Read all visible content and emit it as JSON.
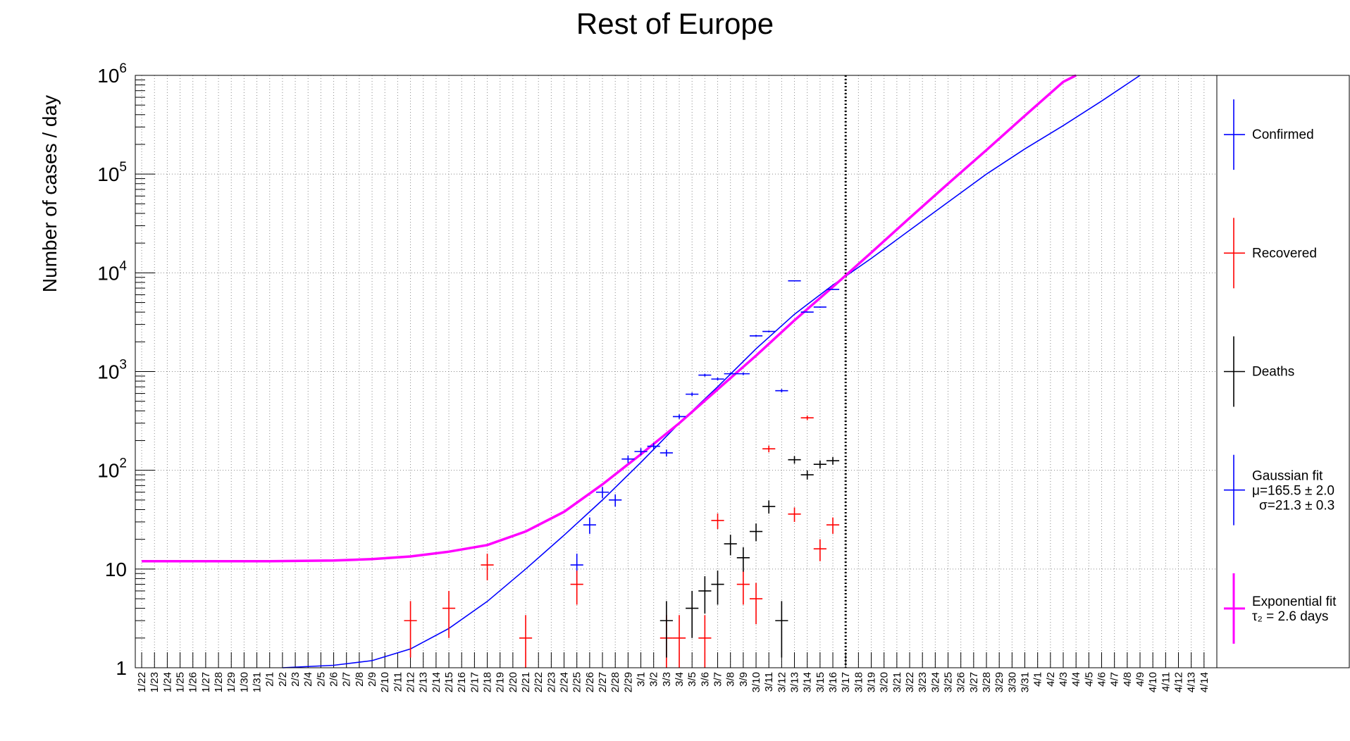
{
  "chart_data": {
    "type": "scatter",
    "title": "Rest of Europe",
    "ylabel": "Number of cases / day",
    "xlabel": "",
    "yscale": "log",
    "ylim": [
      1,
      1000000
    ],
    "y_tick_labels": [
      "1",
      "10",
      "10^2",
      "10^3",
      "10^4",
      "10^5",
      "10^6"
    ],
    "grid": true,
    "legend_position": "right",
    "categories": [
      "1/22",
      "1/23",
      "1/24",
      "1/25",
      "1/26",
      "1/27",
      "1/28",
      "1/29",
      "1/30",
      "1/31",
      "2/1",
      "2/2",
      "2/3",
      "2/4",
      "2/5",
      "2/6",
      "2/7",
      "2/8",
      "2/9",
      "2/10",
      "2/11",
      "2/12",
      "2/13",
      "2/14",
      "2/15",
      "2/16",
      "2/17",
      "2/18",
      "2/19",
      "2/20",
      "2/21",
      "2/22",
      "2/23",
      "2/24",
      "2/25",
      "2/26",
      "2/27",
      "2/28",
      "2/29",
      "3/1",
      "3/2",
      "3/3",
      "3/4",
      "3/5",
      "3/6",
      "3/7",
      "3/8",
      "3/9",
      "3/10",
      "3/11",
      "3/12",
      "3/13",
      "3/14",
      "3/15",
      "3/16",
      "3/17",
      "3/18",
      "3/19",
      "3/20",
      "3/21",
      "3/22",
      "3/23",
      "3/24",
      "3/25",
      "3/26",
      "3/27",
      "3/28",
      "3/29",
      "3/30",
      "3/31",
      "4/1",
      "4/2",
      "4/3",
      "4/4",
      "4/5",
      "4/6",
      "4/7",
      "4/8",
      "4/9",
      "4/10",
      "4/11",
      "4/12",
      "4/13",
      "4/14"
    ],
    "vertical_marker": "3/17",
    "series": [
      {
        "name": "Confirmed",
        "color": "#0000ff",
        "kind": "points",
        "points": [
          {
            "x": "2/25",
            "y": 11
          },
          {
            "x": "2/26",
            "y": 28
          },
          {
            "x": "2/27",
            "y": 60
          },
          {
            "x": "2/28",
            "y": 50
          },
          {
            "x": "2/29",
            "y": 130
          },
          {
            "x": "3/1",
            "y": 155
          },
          {
            "x": "3/2",
            "y": 175
          },
          {
            "x": "3/3",
            "y": 150
          },
          {
            "x": "3/4",
            "y": 350
          },
          {
            "x": "3/5",
            "y": 590
          },
          {
            "x": "3/6",
            "y": 920
          },
          {
            "x": "3/7",
            "y": 840
          },
          {
            "x": "3/8",
            "y": 950
          },
          {
            "x": "3/9",
            "y": 950
          },
          {
            "x": "3/10",
            "y": 2300
          },
          {
            "x": "3/11",
            "y": 2550
          },
          {
            "x": "3/12",
            "y": 640
          },
          {
            "x": "3/13",
            "y": 8300
          },
          {
            "x": "3/14",
            "y": 4000
          },
          {
            "x": "3/15",
            "y": 4500
          },
          {
            "x": "3/16",
            "y": 6800
          }
        ]
      },
      {
        "name": "Recovered",
        "color": "#ff0000",
        "kind": "points",
        "points": [
          {
            "x": "2/12",
            "y": 3
          },
          {
            "x": "2/15",
            "y": 4
          },
          {
            "x": "2/18",
            "y": 11
          },
          {
            "x": "2/21",
            "y": 2
          },
          {
            "x": "2/25",
            "y": 7
          },
          {
            "x": "3/3",
            "y": 2
          },
          {
            "x": "3/4",
            "y": 2
          },
          {
            "x": "3/6",
            "y": 2
          },
          {
            "x": "3/7",
            "y": 31
          },
          {
            "x": "3/9",
            "y": 7
          },
          {
            "x": "3/10",
            "y": 5
          },
          {
            "x": "3/11",
            "y": 165
          },
          {
            "x": "3/13",
            "y": 36
          },
          {
            "x": "3/14",
            "y": 340
          },
          {
            "x": "3/15",
            "y": 16
          },
          {
            "x": "3/16",
            "y": 28
          }
        ]
      },
      {
        "name": "Deaths",
        "color": "#000000",
        "kind": "points",
        "points": [
          {
            "x": "3/3",
            "y": 3
          },
          {
            "x": "3/5",
            "y": 4
          },
          {
            "x": "3/6",
            "y": 6
          },
          {
            "x": "3/7",
            "y": 7
          },
          {
            "x": "3/8",
            "y": 18
          },
          {
            "x": "3/9",
            "y": 13
          },
          {
            "x": "3/10",
            "y": 24
          },
          {
            "x": "3/11",
            "y": 43
          },
          {
            "x": "3/12",
            "y": 3
          },
          {
            "x": "3/13",
            "y": 128
          },
          {
            "x": "3/14",
            "y": 90
          },
          {
            "x": "3/15",
            "y": 115
          },
          {
            "x": "3/16",
            "y": 125
          }
        ]
      },
      {
        "name": "Gaussian fit",
        "label_lines": [
          "Gaussian fit",
          "μ=165.5 ± 2.0",
          "σ=21.3 ± 0.3"
        ],
        "color": "#0000ff",
        "kind": "curve",
        "points": [
          {
            "x": "2/2",
            "y": 1.0
          },
          {
            "x": "2/6",
            "y": 1.06
          },
          {
            "x": "2/9",
            "y": 1.18
          },
          {
            "x": "2/12",
            "y": 1.55
          },
          {
            "x": "2/15",
            "y": 2.5
          },
          {
            "x": "2/18",
            "y": 4.7
          },
          {
            "x": "2/21",
            "y": 10
          },
          {
            "x": "2/24",
            "y": 22
          },
          {
            "x": "2/27",
            "y": 50
          },
          {
            "x": "3/1",
            "y": 120
          },
          {
            "x": "3/4",
            "y": 300
          },
          {
            "x": "3/7",
            "y": 700
          },
          {
            "x": "3/10",
            "y": 1700
          },
          {
            "x": "3/13",
            "y": 3800
          },
          {
            "x": "3/16",
            "y": 7500
          },
          {
            "x": "3/19",
            "y": 14000
          },
          {
            "x": "3/22",
            "y": 27000
          },
          {
            "x": "3/25",
            "y": 52000
          },
          {
            "x": "3/28",
            "y": 100000
          },
          {
            "x": "3/31",
            "y": 180000
          },
          {
            "x": "4/3",
            "y": 310000
          },
          {
            "x": "4/6",
            "y": 550000
          },
          {
            "x": "4/9",
            "y": 1000000
          }
        ]
      },
      {
        "name": "Exponential fit",
        "label_lines": [
          "Exponential fit",
          "τ₂ = 2.6 days"
        ],
        "color": "#ff00ff",
        "kind": "curve",
        "points": [
          {
            "x": "1/22",
            "y": 12
          },
          {
            "x": "2/1",
            "y": 12
          },
          {
            "x": "2/6",
            "y": 12.2
          },
          {
            "x": "2/9",
            "y": 12.6
          },
          {
            "x": "2/12",
            "y": 13.4
          },
          {
            "x": "2/15",
            "y": 15
          },
          {
            "x": "2/18",
            "y": 17.5
          },
          {
            "x": "2/21",
            "y": 24
          },
          {
            "x": "2/24",
            "y": 38
          },
          {
            "x": "2/27",
            "y": 72
          },
          {
            "x": "3/1",
            "y": 145
          },
          {
            "x": "3/4",
            "y": 300
          },
          {
            "x": "3/7",
            "y": 660
          },
          {
            "x": "3/10",
            "y": 1450
          },
          {
            "x": "3/13",
            "y": 3300
          },
          {
            "x": "3/16",
            "y": 7200
          },
          {
            "x": "3/19",
            "y": 16000
          },
          {
            "x": "3/22",
            "y": 36000
          },
          {
            "x": "3/25",
            "y": 80000
          },
          {
            "x": "3/28",
            "y": 175000
          },
          {
            "x": "3/31",
            "y": 390000
          },
          {
            "x": "4/3",
            "y": 860000
          },
          {
            "x": "4/4",
            "y": 1000000
          }
        ]
      }
    ]
  }
}
